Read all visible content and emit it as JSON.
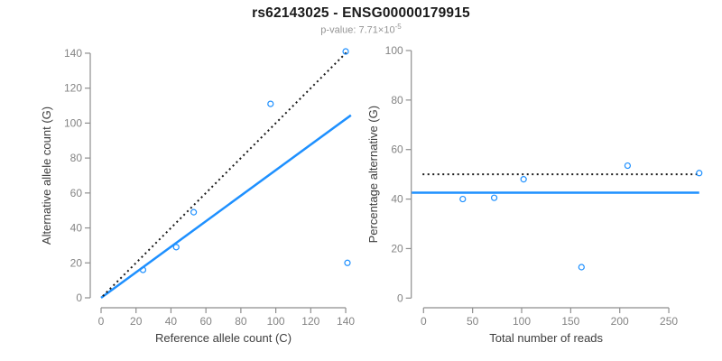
{
  "header": {
    "title": "rs62143025 - ENSG00000179915",
    "subtitle_prefix": "p-value: 7.71×10",
    "subtitle_exponent": "-5"
  },
  "colors": {
    "point_blue": "#1E90FF",
    "line_blue": "#1E90FF",
    "dotted_black": "#1a1a1a",
    "axis_gray": "#8e8e8e",
    "tick_text_gray": "#848484",
    "axis_title_color": "#3d3d3d",
    "title_color": "#1a1a1a",
    "subtitle_gray": "#949494"
  },
  "chart_data": [
    {
      "type": "scatter",
      "name": "allele-counts-scatter",
      "xlabel": "Reference allele count (C)",
      "ylabel": "Alternative allele count (G)",
      "xlim": [
        0,
        143
      ],
      "ylim": [
        0,
        141
      ],
      "xticks": [
        0,
        20,
        40,
        60,
        80,
        100,
        120,
        140
      ],
      "yticks": [
        0,
        20,
        40,
        60,
        80,
        100,
        120,
        140
      ],
      "grid": false,
      "legend": false,
      "points": [
        [
          24,
          16
        ],
        [
          43,
          29
        ],
        [
          53,
          49
        ],
        [
          97,
          111
        ],
        [
          140,
          141
        ],
        [
          141,
          20
        ]
      ],
      "lines": [
        {
          "name": "identity-line",
          "style": "dotted",
          "color": "#1a1a1a",
          "from": [
            1,
            1
          ],
          "to": [
            141.5,
            141.5
          ]
        },
        {
          "name": "regression-line",
          "style": "solid",
          "color": "#1E90FF",
          "from": [
            0,
            0
          ],
          "to": [
            143,
            104.5
          ]
        }
      ]
    },
    {
      "type": "scatter",
      "name": "percentage-vs-reads-scatter",
      "xlabel": "Total number of reads",
      "ylabel": "Percentage alternative (G)",
      "xlim": [
        0,
        281
      ],
      "ylim": [
        0,
        100
      ],
      "xticks": [
        0,
        50,
        100,
        150,
        200,
        250
      ],
      "yticks": [
        0,
        20,
        40,
        60,
        80,
        100
      ],
      "grid": false,
      "legend": false,
      "points": [
        [
          40,
          40
        ],
        [
          72,
          40.5
        ],
        [
          102,
          48
        ],
        [
          161,
          12.5
        ],
        [
          208,
          53.5
        ],
        [
          281,
          50.5
        ]
      ],
      "lines": [
        {
          "name": "null-50pct-line",
          "style": "dotted",
          "color": "#1a1a1a",
          "from": [
            -1,
            50
          ],
          "to": [
            281,
            50
          ]
        },
        {
          "name": "mean-percentage-line",
          "style": "solid",
          "color": "#1E90FF",
          "from": [
            -12,
            42.6
          ],
          "to": [
            281,
            42.6
          ]
        }
      ]
    }
  ]
}
